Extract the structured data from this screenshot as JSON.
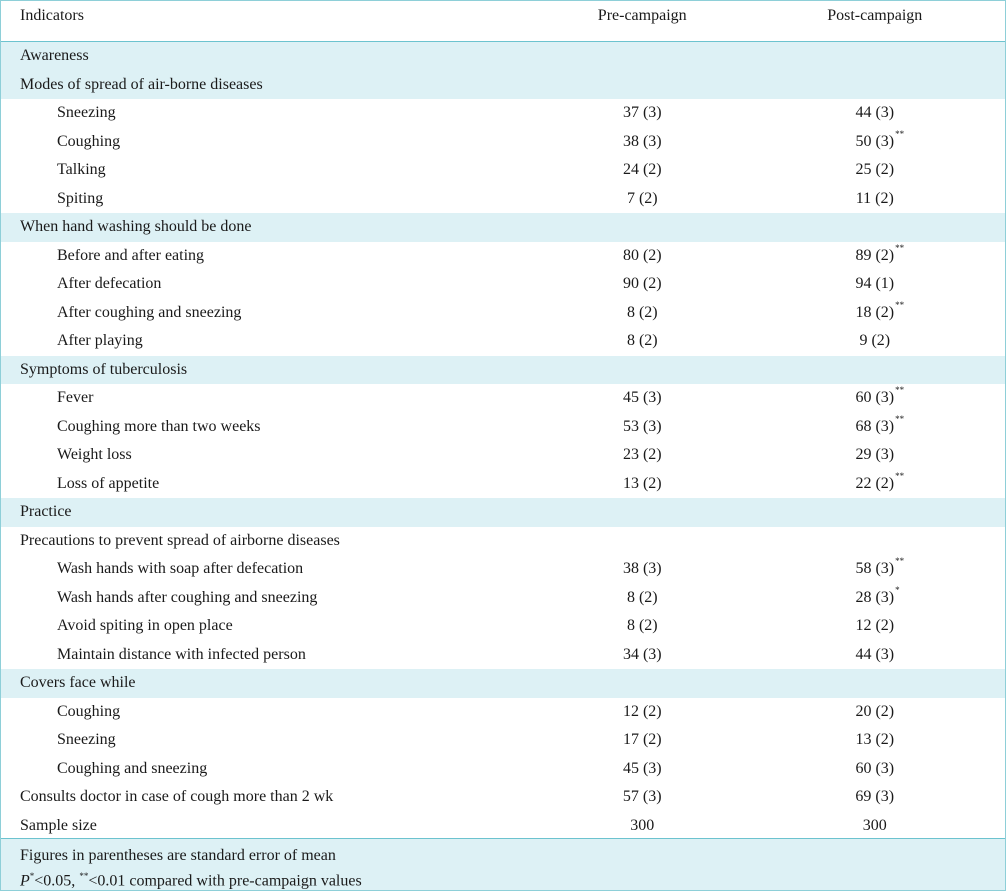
{
  "header": {
    "col1": "Indicators",
    "col2": "Pre-campaign",
    "col3": "Post-campaign"
  },
  "rows": [
    {
      "label": "Awareness",
      "pre": "",
      "post": "",
      "sig": "",
      "indent": false,
      "shade": true
    },
    {
      "label": "Modes of spread of air-borne diseases",
      "pre": "",
      "post": "",
      "sig": "",
      "indent": false,
      "shade": true
    },
    {
      "label": "Sneezing",
      "pre": "37 (3)",
      "post": "44 (3)",
      "sig": "",
      "indent": true,
      "shade": false
    },
    {
      "label": "Coughing",
      "pre": "38 (3)",
      "post": "50 (3)",
      "sig": "**",
      "indent": true,
      "shade": false
    },
    {
      "label": "Talking",
      "pre": "24 (2)",
      "post": "25 (2)",
      "sig": "",
      "indent": true,
      "shade": false
    },
    {
      "label": "Spiting",
      "pre": "7 (2)",
      "post": "11 (2)",
      "sig": "",
      "indent": true,
      "shade": false
    },
    {
      "label": "When hand washing should be done",
      "pre": "",
      "post": "",
      "sig": "",
      "indent": false,
      "shade": true
    },
    {
      "label": "Before and after eating",
      "pre": "80 (2)",
      "post": "89 (2)",
      "sig": "**",
      "indent": true,
      "shade": false
    },
    {
      "label": "After defecation",
      "pre": "90 (2)",
      "post": "94 (1)",
      "sig": "",
      "indent": true,
      "shade": false
    },
    {
      "label": "After coughing and sneezing",
      "pre": "8 (2)",
      "post": "18 (2)",
      "sig": "**",
      "indent": true,
      "shade": false
    },
    {
      "label": "After playing",
      "pre": "8 (2)",
      "post": "9 (2)",
      "sig": "",
      "indent": true,
      "shade": false
    },
    {
      "label": "Symptoms of tuberculosis",
      "pre": "",
      "post": "",
      "sig": "",
      "indent": false,
      "shade": true
    },
    {
      "label": "Fever",
      "pre": "45 (3)",
      "post": "60 (3)",
      "sig": "**",
      "indent": true,
      "shade": false
    },
    {
      "label": "Coughing more than two weeks",
      "pre": "53 (3)",
      "post": "68 (3)",
      "sig": "**",
      "indent": true,
      "shade": false
    },
    {
      "label": "Weight loss",
      "pre": "23 (2)",
      "post": "29 (3)",
      "sig": "",
      "indent": true,
      "shade": false
    },
    {
      "label": "Loss of appetite",
      "pre": "13 (2)",
      "post": "22 (2)",
      "sig": "**",
      "indent": true,
      "shade": false
    },
    {
      "label": "Practice",
      "pre": "",
      "post": "",
      "sig": "",
      "indent": false,
      "shade": true
    },
    {
      "label": "Precautions to prevent spread of airborne diseases",
      "pre": "",
      "post": "",
      "sig": "",
      "indent": false,
      "shade": false
    },
    {
      "label": "Wash hands with soap after defecation",
      "pre": "38 (3)",
      "post": "58 (3)",
      "sig": "**",
      "indent": true,
      "shade": false
    },
    {
      "label": "Wash hands after coughing and sneezing",
      "pre": "8 (2)",
      "post": "28 (3)",
      "sig": "*",
      "indent": true,
      "shade": false
    },
    {
      "label": "Avoid spiting in open place",
      "pre": "8 (2)",
      "post": "12 (2)",
      "sig": "",
      "indent": true,
      "shade": false
    },
    {
      "label": "Maintain distance with infected person",
      "pre": "34 (3)",
      "post": "44 (3)",
      "sig": "",
      "indent": true,
      "shade": false
    },
    {
      "label": "Covers face while",
      "pre": "",
      "post": "",
      "sig": "",
      "indent": false,
      "shade": true
    },
    {
      "label": "Coughing",
      "pre": "12 (2)",
      "post": "20 (2)",
      "sig": "",
      "indent": true,
      "shade": false
    },
    {
      "label": "Sneezing",
      "pre": "17 (2)",
      "post": "13 (2)",
      "sig": "",
      "indent": true,
      "shade": false
    },
    {
      "label": "Coughing and sneezing",
      "pre": "45 (3)",
      "post": "60 (3)",
      "sig": "",
      "indent": true,
      "shade": false
    },
    {
      "label": "Consults doctor in case of cough more than 2 wk",
      "pre": "57 (3)",
      "post": "69 (3)",
      "sig": "",
      "indent": false,
      "shade": false
    },
    {
      "label": "Sample size",
      "pre": "300",
      "post": "300",
      "sig": "",
      "indent": false,
      "shade": false
    }
  ],
  "footer": {
    "line1": "Figures in parentheses are standard error of mean",
    "line2_p": "P",
    "line2_star1": "*",
    "line2_mid": "<0.05, ",
    "line2_star2": "**",
    "line2_rest": "<0.01 compared with pre-campaign values"
  },
  "colors": {
    "shade": "#ddf1f5",
    "rule": "#6cc3cf"
  }
}
